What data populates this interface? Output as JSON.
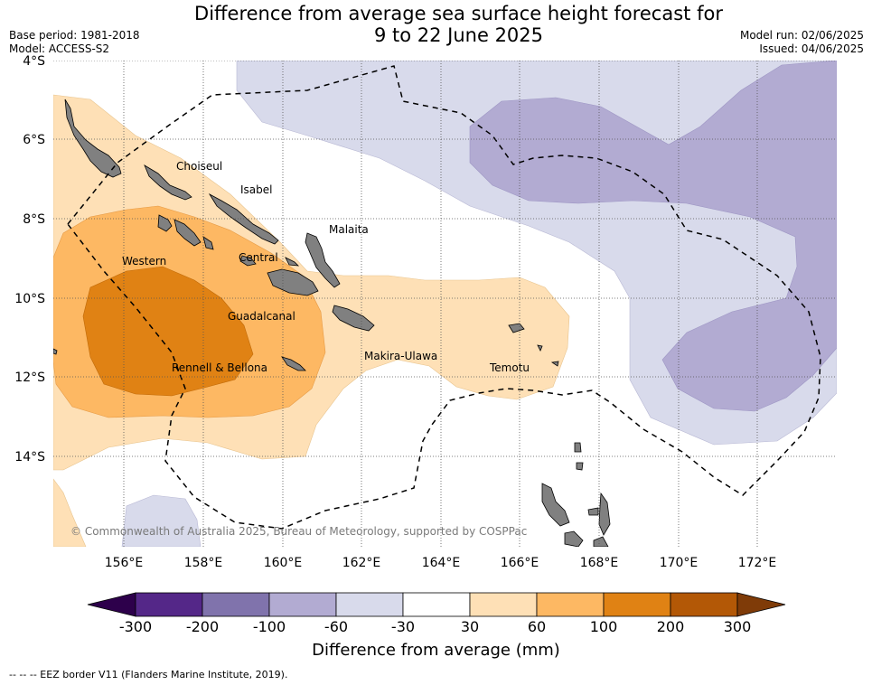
{
  "header": {
    "title_line1": "Difference from average sea surface height forecast for",
    "title_line2": "9 to 22 June 2025",
    "base_period": "Base period: 1981-2018",
    "model": "Model: ACCESS-S2",
    "model_run": "Model run: 02/06/2025",
    "issued": "Issued: 04/06/2025"
  },
  "map": {
    "lat_labels": [
      "4°S",
      "6°S",
      "8°S",
      "10°S",
      "12°S",
      "14°S"
    ],
    "lon_labels": [
      "156°E",
      "158°E",
      "160°E",
      "162°E",
      "164°E",
      "166°E",
      "168°E",
      "170°E",
      "172°E"
    ],
    "regions": {
      "choiseul": "Choiseul",
      "isabel": "Isabel",
      "malaita": "Malaita",
      "western": "Western",
      "central": "Central",
      "guadalcanal": "Guadalcanal",
      "makira_ulawa": "Makira-Ulawa",
      "temotu": "Temotu",
      "rennell_bellona": "Rennell & Bellona"
    },
    "copyright": "© Commonwealth of Australia 2025, Bureau of Meteorology, supported by COSPPac",
    "colors": {
      "land": "#808080",
      "neg_300": "#2d004b",
      "neg_200_300": "#542788",
      "neg_100_200": "#8073ac",
      "neg_60_100": "#b2abd2",
      "neg_30_60": "#d8daeb",
      "neutral": "#ffffff",
      "pos_30_60": "#fee0b6",
      "pos_60_100": "#fdb863",
      "pos_100_200": "#e08214",
      "pos_200_300": "#b35806",
      "pos_300": "#7f3b08"
    }
  },
  "colorbar": {
    "ticks": [
      "-300",
      "-200",
      "-100",
      "-60",
      "-30",
      "30",
      "60",
      "100",
      "200",
      "300"
    ],
    "title": "Difference from average (mm)"
  },
  "footnote": "--  --  -- EEZ border V11 (Flanders Marine Institute, 2019)."
}
